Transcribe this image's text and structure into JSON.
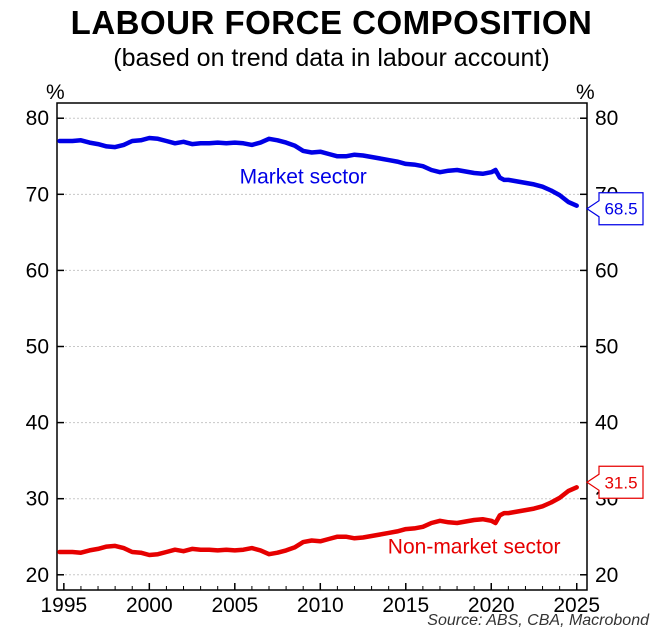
{
  "header": {
    "title": "LABOUR FORCE COMPOSITION",
    "subtitle": "(based on trend data in labour account)"
  },
  "footer": {
    "source": "Source: ABS, CBA, Macrobond"
  },
  "chart_data": {
    "type": "line",
    "y_unit_left": "%",
    "y_unit_right": "%",
    "ylim": [
      18,
      82
    ],
    "xlim": [
      1994.6,
      2025.6
    ],
    "yticks": [
      20,
      30,
      40,
      50,
      60,
      70,
      80
    ],
    "xticks": [
      1995,
      2000,
      2005,
      2010,
      2015,
      2020,
      2025
    ],
    "grid": true,
    "series": [
      {
        "name": "Market sector",
        "color": "#0000e6",
        "end_label": "68.5",
        "x": [
          1994.75,
          1995.5,
          1996,
          1996.5,
          1997,
          1997.5,
          1998,
          1998.5,
          1999,
          1999.5,
          2000,
          2000.5,
          2001,
          2001.5,
          2002,
          2002.5,
          2003,
          2003.5,
          2004,
          2004.5,
          2005,
          2005.5,
          2006,
          2006.5,
          2007,
          2007.5,
          2008,
          2008.5,
          2009,
          2009.5,
          2010,
          2010.5,
          2011,
          2011.5,
          2012,
          2012.5,
          2013,
          2013.5,
          2014,
          2014.5,
          2015,
          2015.5,
          2016,
          2016.5,
          2017,
          2017.5,
          2018,
          2018.5,
          2019,
          2019.5,
          2020,
          2020.25,
          2020.5,
          2020.75,
          2021,
          2021.5,
          2022,
          2022.5,
          2023,
          2023.5,
          2024,
          2024.5,
          2025
        ],
        "values": [
          77.0,
          77.0,
          77.1,
          76.8,
          76.6,
          76.3,
          76.2,
          76.5,
          77.0,
          77.1,
          77.4,
          77.3,
          77.0,
          76.7,
          76.9,
          76.6,
          76.7,
          76.7,
          76.8,
          76.7,
          76.8,
          76.7,
          76.5,
          76.8,
          77.3,
          77.1,
          76.8,
          76.4,
          75.7,
          75.5,
          75.6,
          75.3,
          75.0,
          75.0,
          75.2,
          75.1,
          74.9,
          74.7,
          74.5,
          74.3,
          74.0,
          73.9,
          73.7,
          73.2,
          72.9,
          73.1,
          73.2,
          73.0,
          72.8,
          72.7,
          72.9,
          73.2,
          72.2,
          71.9,
          71.9,
          71.7,
          71.5,
          71.3,
          71.0,
          70.5,
          69.9,
          69.0,
          68.5
        ]
      },
      {
        "name": "Non-market sector",
        "color": "#e60000",
        "end_label": "31.5",
        "x": [
          1994.75,
          1995.5,
          1996,
          1996.5,
          1997,
          1997.5,
          1998,
          1998.5,
          1999,
          1999.5,
          2000,
          2000.5,
          2001,
          2001.5,
          2002,
          2002.5,
          2003,
          2003.5,
          2004,
          2004.5,
          2005,
          2005.5,
          2006,
          2006.5,
          2007,
          2007.5,
          2008,
          2008.5,
          2009,
          2009.5,
          2010,
          2010.5,
          2011,
          2011.5,
          2012,
          2012.5,
          2013,
          2013.5,
          2014,
          2014.5,
          2015,
          2015.5,
          2016,
          2016.5,
          2017,
          2017.5,
          2018,
          2018.5,
          2019,
          2019.5,
          2020,
          2020.25,
          2020.5,
          2020.75,
          2021,
          2021.5,
          2022,
          2022.5,
          2023,
          2023.5,
          2024,
          2024.5,
          2025
        ],
        "values": [
          23.0,
          23.0,
          22.9,
          23.2,
          23.4,
          23.7,
          23.8,
          23.5,
          23.0,
          22.9,
          22.6,
          22.7,
          23.0,
          23.3,
          23.1,
          23.4,
          23.3,
          23.3,
          23.2,
          23.3,
          23.2,
          23.3,
          23.5,
          23.2,
          22.7,
          22.9,
          23.2,
          23.6,
          24.3,
          24.5,
          24.4,
          24.7,
          25.0,
          25.0,
          24.8,
          24.9,
          25.1,
          25.3,
          25.5,
          25.7,
          26.0,
          26.1,
          26.3,
          26.8,
          27.1,
          26.9,
          26.8,
          27.0,
          27.2,
          27.3,
          27.1,
          26.8,
          27.8,
          28.1,
          28.1,
          28.3,
          28.5,
          28.7,
          29.0,
          29.5,
          30.1,
          31.0,
          31.5
        ]
      }
    ]
  }
}
